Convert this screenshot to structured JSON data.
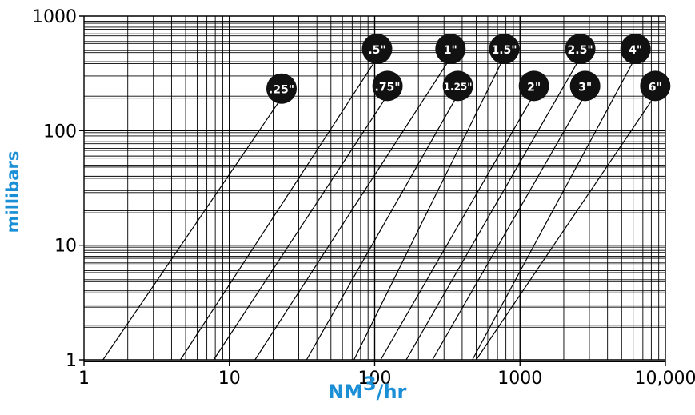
{
  "chart_data": {
    "type": "line",
    "xscale": "log",
    "yscale": "log",
    "xlim": [
      1,
      10000
    ],
    "ylim": [
      1,
      1000
    ],
    "grid": true,
    "xlabel_main": "NM",
    "xlabel_sup": "3",
    "xlabel_tail": "/hr",
    "ylabel": "millibars",
    "x_ticks": [
      {
        "value": 1,
        "label": "1"
      },
      {
        "value": 10,
        "label": "10"
      },
      {
        "value": 100,
        "label": "100"
      },
      {
        "value": 1000,
        "label": "1000"
      },
      {
        "value": 10000,
        "label": "10,000"
      }
    ],
    "y_ticks": [
      {
        "value": 1,
        "label": "1"
      },
      {
        "value": 10,
        "label": "10"
      },
      {
        "value": 100,
        "label": "100"
      },
      {
        "value": 1000,
        "label": "1000"
      }
    ],
    "series": [
      {
        "name": ".25\"",
        "x": [
          1.35,
          22
        ],
        "y": [
          1,
          180
        ]
      },
      {
        "name": ".5\"",
        "x": [
          4.6,
          100
        ],
        "y": [
          1,
          400
        ]
      },
      {
        "name": ".75\"",
        "x": [
          7.8,
          118
        ],
        "y": [
          1,
          190
        ]
      },
      {
        "name": "1\"",
        "x": [
          15,
          320
        ],
        "y": [
          1,
          400
        ]
      },
      {
        "name": "1.25\"",
        "x": [
          34,
          360
        ],
        "y": [
          1,
          190
        ]
      },
      {
        "name": "1.5\"",
        "x": [
          72,
          750
        ],
        "y": [
          1,
          400
        ]
      },
      {
        "name": "2\"",
        "x": [
          110,
          1200
        ],
        "y": [
          1,
          190
        ]
      },
      {
        "name": "2.5\"",
        "x": [
          165,
          2500
        ],
        "y": [
          1,
          400
        ]
      },
      {
        "name": "3\"",
        "x": [
          250,
          2700
        ],
        "y": [
          1,
          190
        ]
      },
      {
        "name": "4\"",
        "x": [
          470,
          6000
        ],
        "y": [
          1,
          400
        ]
      },
      {
        "name": "6\"",
        "x": [
          500,
          8200
        ],
        "y": [
          1,
          190
        ]
      }
    ]
  }
}
